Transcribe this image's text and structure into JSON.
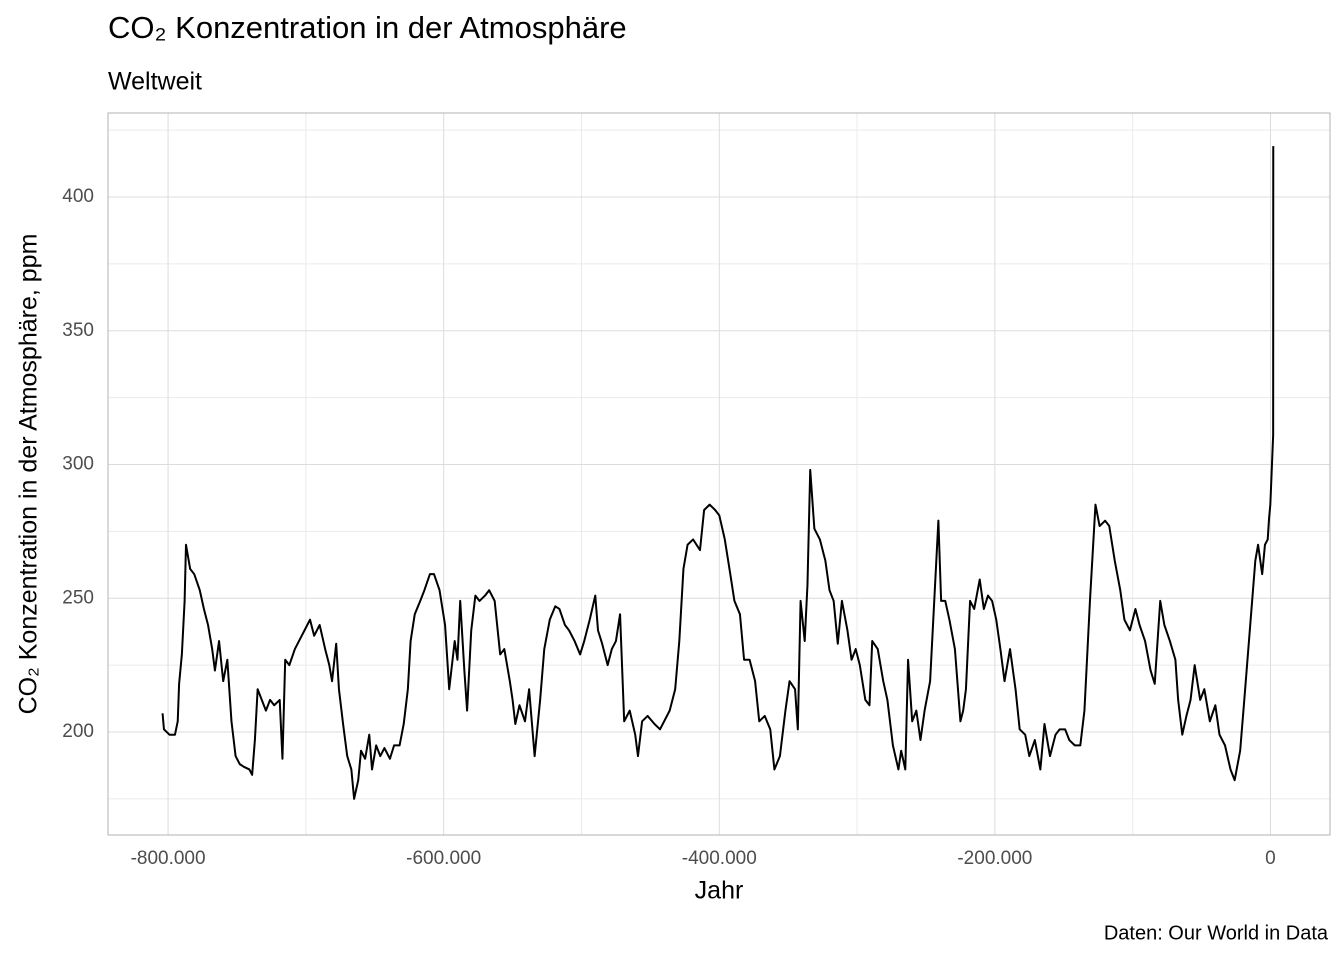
{
  "chart_data": {
    "type": "line",
    "title": "CO₂ Konzentration in der Atmosphäre",
    "subtitle": "Weltweit",
    "x_label": "Jahr",
    "y_label": "CO₂ Konzentration in der Atmosphäre, ppm",
    "caption": "Daten: Our World in Data",
    "xlim": [
      -843600,
      43200
    ],
    "ylim": [
      161.5,
      431.4
    ],
    "xticks": [
      {
        "value": -800000,
        "label": "-800.000"
      },
      {
        "value": -600000,
        "label": "-600.000"
      },
      {
        "value": -400000,
        "label": "-400.000"
      },
      {
        "value": -200000,
        "label": "-200.000"
      },
      0
    ],
    "xminor": [
      -700000,
      -500000,
      -300000,
      -100000
    ],
    "yticks": [
      200,
      250,
      300,
      350,
      400
    ],
    "yminor": [
      175,
      225,
      275,
      325,
      375,
      425
    ],
    "grid": true,
    "series": [
      {
        "color": "#000000",
        "x": [
          -804000,
          -803000,
          -799000,
          -795000,
          -793000,
          -792000,
          -790000,
          -788000,
          -787000,
          -784000,
          -781000,
          -777000,
          -774000,
          -771000,
          -768000,
          -766000,
          -763000,
          -760000,
          -757000,
          -754000,
          -751000,
          -748000,
          -745000,
          -741000,
          -739000,
          -737000,
          -735000,
          -732000,
          -729000,
          -726000,
          -723000,
          -719000,
          -717000,
          -715000,
          -712000,
          -708000,
          -705000,
          -701000,
          -697000,
          -694000,
          -690000,
          -686000,
          -683000,
          -681000,
          -678000,
          -676000,
          -673000,
          -670000,
          -667000,
          -665000,
          -662000,
          -660000,
          -657000,
          -654000,
          -652000,
          -649000,
          -646000,
          -643000,
          -639000,
          -636000,
          -632000,
          -629000,
          -626000,
          -624000,
          -621000,
          -617000,
          -614000,
          -610000,
          -607000,
          -603000,
          -599000,
          -596000,
          -592000,
          -590000,
          -588000,
          -585000,
          -583000,
          -580000,
          -577000,
          -574000,
          -570000,
          -567000,
          -563000,
          -559000,
          -556000,
          -552000,
          -550000,
          -548000,
          -545000,
          -541000,
          -538000,
          -534000,
          -530000,
          -527000,
          -523000,
          -519000,
          -516000,
          -512000,
          -509000,
          -505000,
          -501000,
          -498000,
          -494000,
          -490000,
          -488000,
          -485000,
          -481000,
          -478000,
          -475000,
          -472000,
          -469000,
          -465000,
          -461000,
          -459000,
          -456000,
          -452000,
          -447000,
          -443000,
          -436000,
          -432000,
          -429000,
          -426000,
          -423000,
          -419000,
          -414000,
          -411000,
          -407000,
          -403000,
          -400000,
          -396000,
          -392000,
          -389000,
          -385000,
          -382000,
          -378000,
          -374000,
          -371000,
          -367000,
          -363000,
          -360000,
          -356000,
          -352000,
          -349000,
          -345000,
          -343000,
          -341000,
          -338000,
          -336000,
          -334000,
          -331000,
          -327000,
          -323000,
          -320000,
          -317000,
          -314000,
          -311000,
          -307000,
          -304000,
          -301000,
          -298000,
          -294000,
          -291000,
          -289000,
          -285000,
          -281000,
          -278000,
          -274000,
          -270000,
          -268000,
          -265000,
          -263000,
          -260000,
          -257000,
          -254000,
          -251000,
          -247000,
          -244000,
          -241000,
          -239000,
          -236000,
          -233000,
          -229000,
          -225000,
          -223000,
          -221000,
          -218000,
          -215000,
          -211000,
          -208000,
          -205000,
          -202000,
          -199000,
          -196000,
          -193000,
          -189000,
          -185000,
          -182000,
          -178000,
          -175000,
          -171000,
          -167000,
          -164000,
          -160000,
          -156000,
          -153000,
          -149000,
          -146000,
          -142000,
          -138000,
          -135000,
          -131000,
          -127000,
          -124000,
          -120000,
          -117000,
          -113000,
          -109000,
          -106000,
          -102000,
          -98000,
          -95000,
          -91000,
          -87000,
          -84000,
          -80000,
          -77000,
          -73000,
          -69000,
          -67000,
          -64000,
          -61000,
          -58000,
          -55000,
          -51000,
          -48000,
          -44000,
          -40000,
          -37000,
          -33000,
          -29000,
          -26000,
          -22000,
          -19000,
          -15000,
          -11000,
          -9000,
          -6000,
          -4000,
          -2000,
          -1000,
          -100,
          1950,
          2022
        ],
        "values": [
          207,
          201,
          199,
          199,
          204,
          218,
          229,
          249,
          270,
          261,
          259,
          253,
          246,
          240,
          231,
          223,
          234,
          219,
          227,
          204,
          191,
          188,
          187,
          186,
          184,
          197,
          216,
          212,
          208,
          212,
          210,
          212,
          190,
          227,
          225,
          231,
          234,
          238,
          242,
          236,
          240,
          231,
          225,
          219,
          233,
          216,
          203,
          191,
          186,
          175,
          182,
          193,
          190,
          199,
          186,
          195,
          191,
          194,
          190,
          195,
          195,
          203,
          216,
          234,
          244,
          249,
          253,
          259,
          259,
          253,
          240,
          216,
          234,
          227,
          249,
          223,
          208,
          238,
          251,
          249,
          251,
          253,
          249,
          229,
          231,
          219,
          212,
          203,
          210,
          204,
          216,
          191,
          212,
          231,
          242,
          247,
          246,
          240,
          238,
          234,
          229,
          234,
          242,
          251,
          238,
          233,
          225,
          231,
          234,
          244,
          204,
          208,
          199,
          191,
          204,
          206,
          203,
          201,
          208,
          216,
          234,
          261,
          270,
          272,
          268,
          283,
          285,
          283,
          281,
          272,
          259,
          249,
          244,
          227,
          227,
          219,
          204,
          206,
          201,
          186,
          191,
          208,
          219,
          216,
          201,
          249,
          234,
          255,
          298,
          276,
          272,
          264,
          253,
          249,
          233,
          249,
          238,
          227,
          231,
          225,
          212,
          210,
          234,
          231,
          219,
          212,
          195,
          186,
          193,
          186,
          227,
          204,
          208,
          197,
          208,
          219,
          249,
          279,
          249,
          249,
          242,
          231,
          204,
          208,
          216,
          249,
          246,
          257,
          246,
          251,
          249,
          242,
          231,
          219,
          231,
          216,
          201,
          199,
          191,
          197,
          186,
          203,
          191,
          199,
          201,
          201,
          197,
          195,
          195,
          208,
          249,
          285,
          277,
          279,
          277,
          264,
          253,
          242,
          238,
          246,
          240,
          234,
          223,
          218,
          249,
          240,
          234,
          227,
          212,
          199,
          206,
          212,
          225,
          212,
          216,
          204,
          210,
          199,
          195,
          186,
          182,
          193,
          212,
          238,
          264,
          270,
          259,
          270,
          272,
          280,
          285,
          311,
          419
        ]
      }
    ]
  }
}
